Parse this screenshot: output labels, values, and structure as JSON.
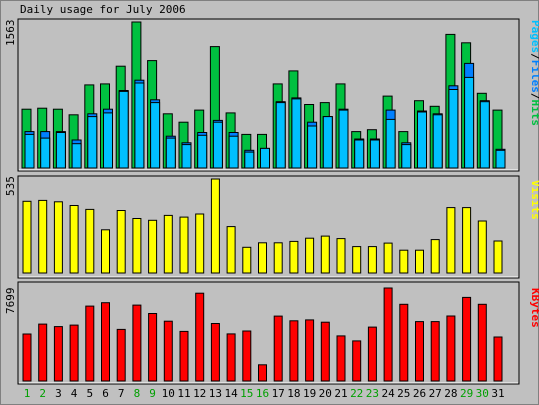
{
  "title": "Daily usage for July 2006",
  "colors": {
    "background": "#c0c0c0",
    "panel": "#c0c0c0",
    "hits": "#00c040",
    "files": "#0080ff",
    "pages": "#00c0ff",
    "visits": "#ffff00",
    "kbytes": "#ff0000",
    "weekday_label": "#000000",
    "weekend_label": "#00a000"
  },
  "legend": {
    "pages": "Pages",
    "slash1": "/",
    "files": "Files",
    "slash2": "/",
    "hits": "Hits",
    "visits": "Visits",
    "kbytes": "KBytes"
  },
  "chart_data": [
    {
      "type": "bar",
      "title": "Daily usage for July 2006",
      "panel": "hits_files_pages",
      "ymax_label": "1563",
      "ylim": [
        0,
        1563
      ],
      "categories": [
        "1",
        "2",
        "3",
        "4",
        "5",
        "6",
        "7",
        "8",
        "9",
        "10",
        "11",
        "12",
        "13",
        "14",
        "15",
        "16",
        "17",
        "18",
        "19",
        "20",
        "21",
        "22",
        "23",
        "24",
        "25",
        "26",
        "27",
        "28",
        "29",
        "30",
        "31"
      ],
      "weekend_days": [
        "1",
        "2",
        "8",
        "9",
        "15",
        "16",
        "22",
        "23",
        "29",
        "30"
      ],
      "series": [
        {
          "name": "Hits",
          "values": [
            630,
            640,
            630,
            570,
            890,
            900,
            1090,
            1563,
            1150,
            580,
            490,
            620,
            1300,
            590,
            360,
            360,
            900,
            1040,
            680,
            700,
            900,
            390,
            410,
            770,
            390,
            720,
            660,
            1430,
            1340,
            800,
            620
          ]
        },
        {
          "name": "Files",
          "values": [
            390,
            390,
            390,
            300,
            580,
            630,
            830,
            940,
            730,
            340,
            270,
            380,
            510,
            380,
            190,
            210,
            710,
            750,
            490,
            550,
            630,
            310,
            310,
            620,
            270,
            610,
            580,
            880,
            1120,
            720,
            200
          ]
        },
        {
          "name": "Pages",
          "values": [
            360,
            320,
            380,
            260,
            550,
            590,
            820,
            910,
            700,
            320,
            250,
            350,
            490,
            340,
            170,
            210,
            700,
            740,
            450,
            550,
            620,
            300,
            300,
            520,
            250,
            600,
            570,
            840,
            970,
            710,
            190
          ]
        }
      ]
    },
    {
      "type": "bar",
      "panel": "visits",
      "ymax_label": "535",
      "ylim": [
        0,
        535
      ],
      "categories": [
        "1",
        "2",
        "3",
        "4",
        "5",
        "6",
        "7",
        "8",
        "9",
        "10",
        "11",
        "12",
        "13",
        "14",
        "15",
        "16",
        "17",
        "18",
        "19",
        "20",
        "21",
        "22",
        "23",
        "24",
        "25",
        "26",
        "27",
        "28",
        "29",
        "30",
        "31"
      ],
      "series": [
        {
          "name": "Visits",
          "values": [
            408,
            413,
            405,
            384,
            362,
            246,
            356,
            310,
            300,
            328,
            318,
            336,
            535,
            264,
            146,
            172,
            172,
            180,
            198,
            210,
            196,
            150,
            150,
            170,
            130,
            130,
            190,
            372,
            372,
            296,
            182
          ]
        }
      ]
    },
    {
      "type": "bar",
      "panel": "kbytes",
      "ymax_label": "7699",
      "ylim": [
        0,
        7699
      ],
      "categories": [
        "1",
        "2",
        "3",
        "4",
        "5",
        "6",
        "7",
        "8",
        "9",
        "10",
        "11",
        "12",
        "13",
        "14",
        "15",
        "16",
        "17",
        "18",
        "19",
        "20",
        "21",
        "22",
        "23",
        "24",
        "25",
        "26",
        "27",
        "28",
        "29",
        "30",
        "31"
      ],
      "series": [
        {
          "name": "KBytes",
          "values": [
            3890,
            4710,
            4500,
            4630,
            6200,
            6480,
            4270,
            6280,
            5590,
            4950,
            4110,
            7270,
            4760,
            3900,
            4140,
            1340,
            5370,
            4980,
            5060,
            4870,
            3730,
            3320,
            4460,
            7699,
            6350,
            4920,
            4920,
            5380,
            6920,
            6350,
            3640
          ]
        }
      ]
    }
  ]
}
